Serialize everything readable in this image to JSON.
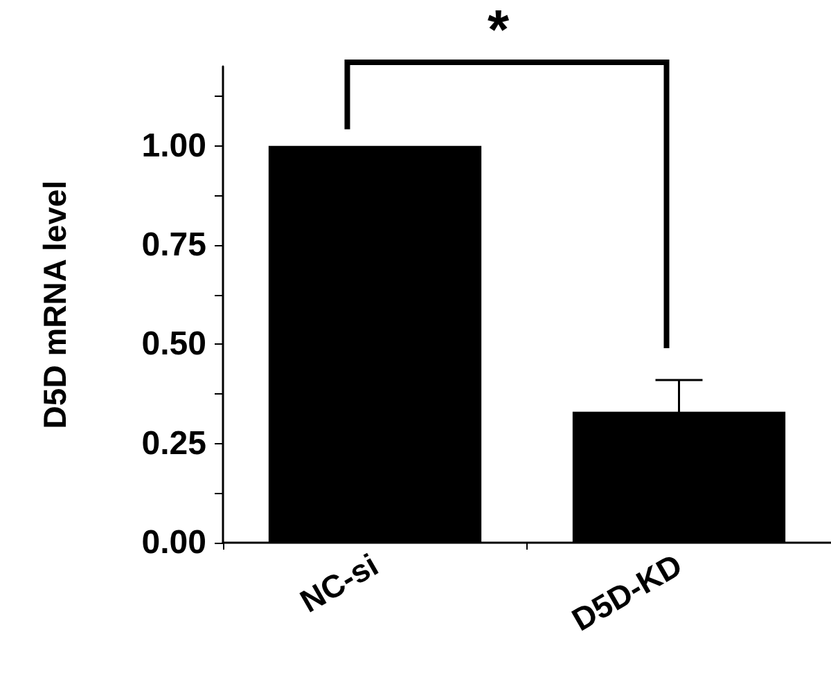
{
  "chart_data": {
    "type": "bar",
    "ylabel": "D5D mRNA level",
    "categories": [
      "NC-si",
      "D5D-KD"
    ],
    "series": [
      {
        "color": "#000000",
        "values": [
          1.0,
          0.33
        ],
        "errors": [
          null,
          0.08
        ]
      }
    ],
    "ylim": [
      0,
      1.2
    ],
    "yticks": [
      {
        "value": 0,
        "label": "0.00"
      },
      {
        "value": 0.125,
        "label": null
      },
      {
        "value": 0.25,
        "label": "0.25"
      },
      {
        "value": 0.375,
        "label": null
      },
      {
        "value": 0.5,
        "label": "0.50"
      },
      {
        "value": 0.625,
        "label": null
      },
      {
        "value": 0.75,
        "label": "0.75"
      },
      {
        "value": 0.875,
        "label": null
      },
      {
        "value": 1,
        "label": "1.00"
      },
      {
        "value": 1.125,
        "label": null
      }
    ],
    "annotations": [
      "*"
    ],
    "grid": false
  }
}
